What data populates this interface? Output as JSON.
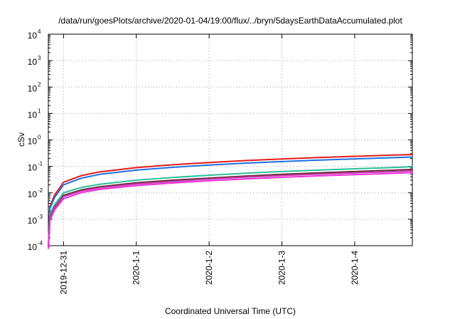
{
  "chart_data": {
    "type": "line",
    "title": "/data/run/goesPlots/archive/2020-01-04/19:00/flux/../bryn/5daysEarthDataAccumulated.plot",
    "xlabel": "Coordinated Universal Time (UTC)",
    "ylabel": "cSv",
    "yscale": "log",
    "ylim": [
      0.0001,
      10000
    ],
    "y_ticks": [
      {
        "base": "10",
        "exp": "-4",
        "value": 0.0001
      },
      {
        "base": "10",
        "exp": "-3",
        "value": 0.001
      },
      {
        "base": "10",
        "exp": "-2",
        "value": 0.01
      },
      {
        "base": "10",
        "exp": "-1",
        "value": 0.1
      },
      {
        "base": "10",
        "exp": "0",
        "value": 1
      },
      {
        "base": "10",
        "exp": "1",
        "value": 10
      },
      {
        "base": "10",
        "exp": "2",
        "value": 100
      },
      {
        "base": "10",
        "exp": "3",
        "value": 1000
      },
      {
        "base": "10",
        "exp": "4",
        "value": 10000
      }
    ],
    "xlim": [
      "2019-12-30 19:00",
      "2020-01-04 19:00"
    ],
    "x_ticks": [
      {
        "label": "2019-12-31",
        "value": "2019-12-31 00:00"
      },
      {
        "label": "2020-1-1",
        "value": "2020-01-01 00:00"
      },
      {
        "label": "2020-1-2",
        "value": "2020-01-02 00:00"
      },
      {
        "label": "2020-1-3",
        "value": "2020-01-03 00:00"
      },
      {
        "label": "2020-1-4",
        "value": "2020-01-04 00:00"
      }
    ],
    "grid": true,
    "series": [
      {
        "color": "#e41a1c",
        "points": [
          [
            "2019-12-30 19:00",
            8e-05
          ],
          [
            "2019-12-30 19:30",
            0.003
          ],
          [
            "2019-12-30 21:00",
            0.008
          ],
          [
            "2019-12-31 00:00",
            0.025
          ],
          [
            "2019-12-31 06:00",
            0.045
          ],
          [
            "2019-12-31 12:00",
            0.062
          ],
          [
            "2020-01-01 00:00",
            0.09
          ],
          [
            "2020-01-01 12:00",
            0.115
          ],
          [
            "2020-01-02 00:00",
            0.14
          ],
          [
            "2020-01-02 12:00",
            0.165
          ],
          [
            "2020-01-03 00:00",
            0.19
          ],
          [
            "2020-01-03 12:00",
            0.215
          ],
          [
            "2020-01-04 00:00",
            0.24
          ],
          [
            "2020-01-04 12:00",
            0.265
          ],
          [
            "2020-01-04 19:00",
            0.28
          ]
        ]
      },
      {
        "color": "#1f6fe0",
        "points": [
          [
            "2019-12-30 19:00",
            8e-05
          ],
          [
            "2019-12-30 19:30",
            0.0025
          ],
          [
            "2019-12-30 21:00",
            0.0065
          ],
          [
            "2019-12-31 00:00",
            0.02
          ],
          [
            "2019-12-31 06:00",
            0.036
          ],
          [
            "2019-12-31 12:00",
            0.05
          ],
          [
            "2020-01-01 00:00",
            0.072
          ],
          [
            "2020-01-01 12:00",
            0.092
          ],
          [
            "2020-01-02 00:00",
            0.112
          ],
          [
            "2020-01-02 12:00",
            0.132
          ],
          [
            "2020-01-03 00:00",
            0.152
          ],
          [
            "2020-01-03 12:00",
            0.172
          ],
          [
            "2020-01-04 00:00",
            0.192
          ],
          [
            "2020-01-04 12:00",
            0.212
          ],
          [
            "2020-01-04 19:00",
            0.225
          ]
        ]
      },
      {
        "color": "#2bbf9a",
        "points": [
          [
            "2019-12-30 19:00",
            8e-05
          ],
          [
            "2019-12-30 19:30",
            0.0015
          ],
          [
            "2019-12-30 21:00",
            0.0035
          ],
          [
            "2019-12-31 00:00",
            0.01
          ],
          [
            "2019-12-31 06:00",
            0.016
          ],
          [
            "2019-12-31 12:00",
            0.021
          ],
          [
            "2020-01-01 00:00",
            0.03
          ],
          [
            "2020-01-01 12:00",
            0.038
          ],
          [
            "2020-01-02 00:00",
            0.046
          ],
          [
            "2020-01-02 12:00",
            0.055
          ],
          [
            "2020-01-03 00:00",
            0.064
          ],
          [
            "2020-01-03 12:00",
            0.072
          ],
          [
            "2020-01-04 00:00",
            0.081
          ],
          [
            "2020-01-04 12:00",
            0.09
          ],
          [
            "2020-01-04 19:00",
            0.097
          ]
        ]
      },
      {
        "color": "#6b2a3a",
        "points": [
          [
            "2019-12-30 19:00",
            8e-05
          ],
          [
            "2019-12-30 19:30",
            0.0012
          ],
          [
            "2019-12-30 21:00",
            0.0028
          ],
          [
            "2019-12-31 00:00",
            0.008
          ],
          [
            "2019-12-31 06:00",
            0.013
          ],
          [
            "2019-12-31 12:00",
            0.017
          ],
          [
            "2020-01-01 00:00",
            0.024
          ],
          [
            "2020-01-01 12:00",
            0.03
          ],
          [
            "2020-01-02 00:00",
            0.036
          ],
          [
            "2020-01-02 12:00",
            0.043
          ],
          [
            "2020-01-03 00:00",
            0.05
          ],
          [
            "2020-01-03 12:00",
            0.057
          ],
          [
            "2020-01-04 00:00",
            0.064
          ],
          [
            "2020-01-04 12:00",
            0.071
          ],
          [
            "2020-01-04 19:00",
            0.076
          ]
        ]
      },
      {
        "color": "#c837ab",
        "points": [
          [
            "2019-12-30 19:00",
            8e-05
          ],
          [
            "2019-12-30 19:30",
            0.0011
          ],
          [
            "2019-12-30 21:00",
            0.0026
          ],
          [
            "2019-12-31 00:00",
            0.0072
          ],
          [
            "2019-12-31 06:00",
            0.0118
          ],
          [
            "2019-12-31 12:00",
            0.0155
          ],
          [
            "2020-01-01 00:00",
            0.0215
          ],
          [
            "2020-01-01 12:00",
            0.027
          ],
          [
            "2020-01-02 00:00",
            0.033
          ],
          [
            "2020-01-02 12:00",
            0.039
          ],
          [
            "2020-01-03 00:00",
            0.045
          ],
          [
            "2020-01-03 12:00",
            0.051
          ],
          [
            "2020-01-04 00:00",
            0.057
          ],
          [
            "2020-01-04 12:00",
            0.063
          ],
          [
            "2020-01-04 19:00",
            0.068
          ]
        ]
      },
      {
        "color": "#ee2fd9",
        "points": [
          [
            "2019-12-30 19:00",
            8e-05
          ],
          [
            "2019-12-30 19:30",
            0.0009
          ],
          [
            "2019-12-30 21:00",
            0.0022
          ],
          [
            "2019-12-31 00:00",
            0.006
          ],
          [
            "2019-12-31 06:00",
            0.0102
          ],
          [
            "2019-12-31 12:00",
            0.0135
          ],
          [
            "2020-01-01 00:00",
            0.0188
          ],
          [
            "2020-01-01 12:00",
            0.0235
          ],
          [
            "2020-01-02 00:00",
            0.0285
          ],
          [
            "2020-01-02 12:00",
            0.0335
          ],
          [
            "2020-01-03 00:00",
            0.0385
          ],
          [
            "2020-01-03 12:00",
            0.0435
          ],
          [
            "2020-01-04 00:00",
            0.0485
          ],
          [
            "2020-01-04 12:00",
            0.054
          ],
          [
            "2020-01-04 19:00",
            0.058
          ]
        ]
      }
    ]
  }
}
